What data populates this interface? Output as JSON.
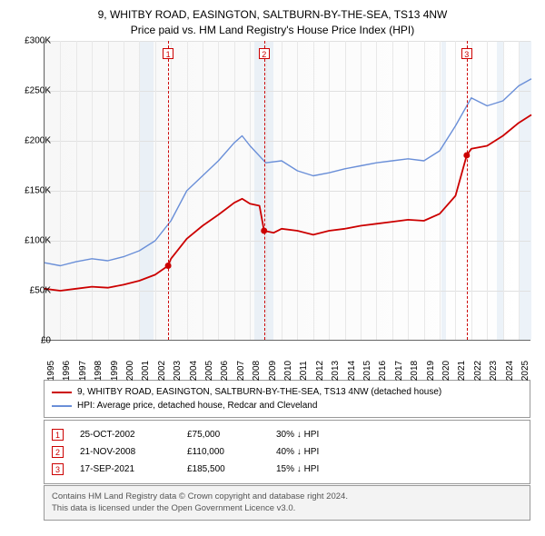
{
  "title": {
    "line1": "9, WHITBY ROAD, EASINGTON, SALTBURN-BY-THE-SEA, TS13 4NW",
    "line2": "Price paid vs. HM Land Registry's House Price Index (HPI)"
  },
  "chart": {
    "type": "line",
    "background_gradient": [
      "#f7f7f7",
      "#ffffff"
    ],
    "grid_color": "#e0e0e0",
    "axis_color": "#666666",
    "x": {
      "min": 1995,
      "max": 2025.8,
      "ticks": [
        1995,
        1996,
        1997,
        1998,
        1999,
        2000,
        2001,
        2002,
        2003,
        2004,
        2005,
        2006,
        2007,
        2008,
        2009,
        2010,
        2011,
        2012,
        2013,
        2014,
        2015,
        2016,
        2017,
        2018,
        2019,
        2020,
        2021,
        2022,
        2023,
        2024,
        2025
      ],
      "fontsize": 10
    },
    "y": {
      "min": 0,
      "max": 300000,
      "ticks": [
        0,
        50000,
        100000,
        150000,
        200000,
        250000,
        300000
      ],
      "tick_labels": [
        "£0",
        "£50K",
        "£100K",
        "£150K",
        "£200K",
        "£250K",
        "£300K"
      ],
      "fontsize": 10
    },
    "shade_bands": [
      {
        "start": 2001.0,
        "end": 2001.9,
        "color": "#dfeaf4"
      },
      {
        "start": 2008.3,
        "end": 2009.5,
        "color": "#dfeaf4"
      },
      {
        "start": 2020.1,
        "end": 2020.4,
        "color": "#dfeaf4"
      },
      {
        "start": 2023.6,
        "end": 2024.0,
        "color": "#dfeaf4"
      },
      {
        "start": 2025.0,
        "end": 2025.8,
        "color": "#dfeaf4"
      }
    ],
    "event_lines": [
      {
        "x": 2002.82,
        "label": "1"
      },
      {
        "x": 2008.89,
        "label": "2"
      },
      {
        "x": 2021.71,
        "label": "3"
      }
    ],
    "series": [
      {
        "name": "hpi",
        "color": "#6a8fd8",
        "line_width": 1.4,
        "points": [
          [
            1995,
            78000
          ],
          [
            1996,
            75000
          ],
          [
            1997,
            79000
          ],
          [
            1998,
            82000
          ],
          [
            1999,
            80000
          ],
          [
            2000,
            84000
          ],
          [
            2001,
            90000
          ],
          [
            2002,
            100000
          ],
          [
            2003,
            120000
          ],
          [
            2004,
            150000
          ],
          [
            2005,
            165000
          ],
          [
            2006,
            180000
          ],
          [
            2007,
            198000
          ],
          [
            2007.5,
            205000
          ],
          [
            2008,
            195000
          ],
          [
            2009,
            178000
          ],
          [
            2010,
            180000
          ],
          [
            2011,
            170000
          ],
          [
            2012,
            165000
          ],
          [
            2013,
            168000
          ],
          [
            2014,
            172000
          ],
          [
            2015,
            175000
          ],
          [
            2016,
            178000
          ],
          [
            2017,
            180000
          ],
          [
            2018,
            182000
          ],
          [
            2019,
            180000
          ],
          [
            2020,
            190000
          ],
          [
            2021,
            215000
          ],
          [
            2022,
            243000
          ],
          [
            2023,
            235000
          ],
          [
            2024,
            240000
          ],
          [
            2025,
            255000
          ],
          [
            2025.8,
            262000
          ]
        ]
      },
      {
        "name": "price-paid",
        "color": "#cc0000",
        "line_width": 1.8,
        "points": [
          [
            1995,
            52000
          ],
          [
            1996,
            50000
          ],
          [
            1997,
            52000
          ],
          [
            1998,
            54000
          ],
          [
            1999,
            53000
          ],
          [
            2000,
            56000
          ],
          [
            2001,
            60000
          ],
          [
            2002,
            66000
          ],
          [
            2002.82,
            75000
          ],
          [
            2003,
            82000
          ],
          [
            2004,
            102000
          ],
          [
            2005,
            115000
          ],
          [
            2006,
            126000
          ],
          [
            2007,
            138000
          ],
          [
            2007.5,
            142000
          ],
          [
            2008,
            137000
          ],
          [
            2008.6,
            135000
          ],
          [
            2008.89,
            110000
          ],
          [
            2009.5,
            108000
          ],
          [
            2010,
            112000
          ],
          [
            2011,
            110000
          ],
          [
            2012,
            106000
          ],
          [
            2013,
            110000
          ],
          [
            2014,
            112000
          ],
          [
            2015,
            115000
          ],
          [
            2016,
            117000
          ],
          [
            2017,
            119000
          ],
          [
            2018,
            121000
          ],
          [
            2019,
            120000
          ],
          [
            2020,
            127000
          ],
          [
            2021,
            145000
          ],
          [
            2021.71,
            185500
          ],
          [
            2022,
            192000
          ],
          [
            2023,
            195000
          ],
          [
            2024,
            205000
          ],
          [
            2025,
            218000
          ],
          [
            2025.8,
            226000
          ]
        ],
        "markers": [
          {
            "x": 2002.82,
            "y": 75000
          },
          {
            "x": 2008.89,
            "y": 110000
          },
          {
            "x": 2021.71,
            "y": 185500
          }
        ],
        "marker_radius": 3.5
      }
    ]
  },
  "legend": {
    "items": [
      {
        "color": "#cc0000",
        "label": "9, WHITBY ROAD, EASINGTON, SALTBURN-BY-THE-SEA, TS13 4NW (detached house)"
      },
      {
        "color": "#6a8fd8",
        "label": "HPI: Average price, detached house, Redcar and Cleveland"
      }
    ]
  },
  "events": [
    {
      "num": "1",
      "date": "25-OCT-2002",
      "price": "£75,000",
      "delta": "30% ↓ HPI"
    },
    {
      "num": "2",
      "date": "21-NOV-2008",
      "price": "£110,000",
      "delta": "40% ↓ HPI"
    },
    {
      "num": "3",
      "date": "17-SEP-2021",
      "price": "£185,500",
      "delta": "15% ↓ HPI"
    }
  ],
  "footer": {
    "line1": "Contains HM Land Registry data © Crown copyright and database right 2024.",
    "line2": "This data is licensed under the Open Government Licence v3.0."
  }
}
